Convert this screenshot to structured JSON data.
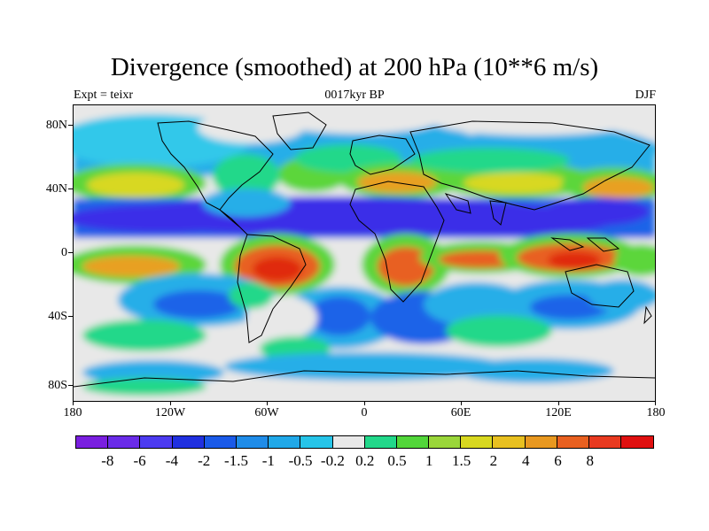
{
  "title": "Divergence (smoothed) at 200 hPa (10**6 m/s)",
  "subtitle_left": "Expt = teixr",
  "subtitle_center": "0017kyr BP",
  "subtitle_right": "DJF",
  "lat_ticks": [
    "80N",
    "40N",
    "0",
    "40S",
    "80S"
  ],
  "lon_ticks": [
    "180",
    "120W",
    "60W",
    "0",
    "60E",
    "120E",
    "180"
  ],
  "colorbar": {
    "colors": [
      "#7a1fe0",
      "#6a2be8",
      "#4c3bf0",
      "#2030e0",
      "#1a5ae8",
      "#1f8ce8",
      "#20a8e8",
      "#26c4e8",
      "#e8e8e8",
      "#22d88a",
      "#52d63a",
      "#9ad63a",
      "#d8d820",
      "#e8c020",
      "#e89820",
      "#e86020",
      "#e83a20",
      "#e01010"
    ],
    "labels": [
      "-8",
      "-6",
      "-4",
      "-2",
      "-1.5",
      "-1",
      "-0.5",
      "-0.2",
      "0.2",
      "0.5",
      "1",
      "1.5",
      "2",
      "4",
      "6",
      "8"
    ]
  },
  "field_colors": {
    "strong_neg": "#3a2ee8",
    "neg": "#1f63e8",
    "weak_neg": "#25aee8",
    "light_neg": "#30c8ea",
    "neutral": "#e8e8e8",
    "weak_pos": "#22d88a",
    "pos": "#5cd63a",
    "mid_pos": "#d8d820",
    "high_pos": "#e8a020",
    "very_high": "#e86020",
    "extreme": "#e02a10"
  }
}
